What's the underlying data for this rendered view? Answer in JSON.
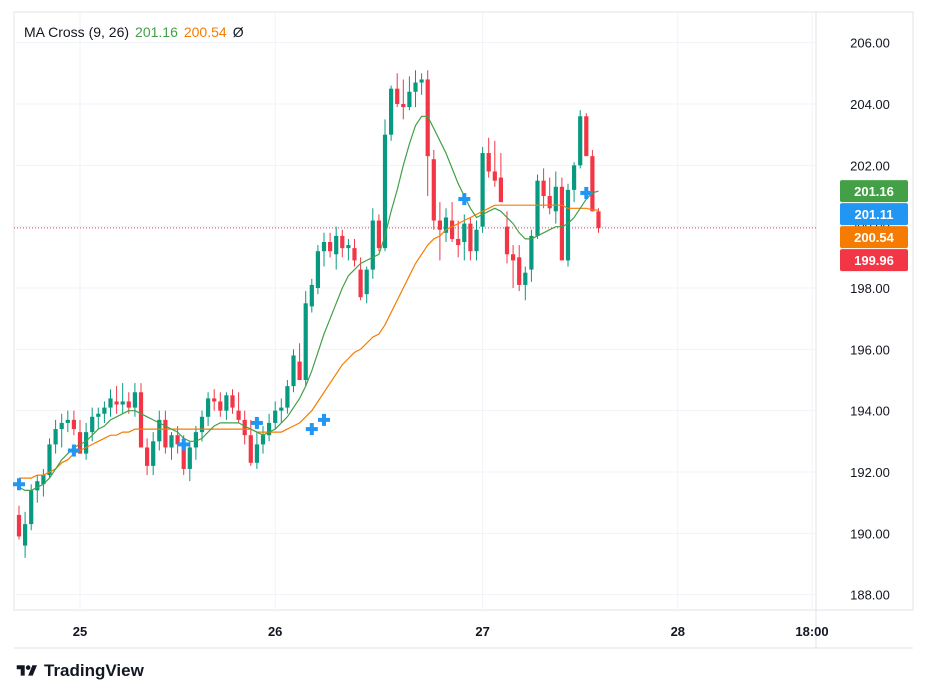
{
  "legend": {
    "indicator": "MA Cross (9, 26)",
    "fast_value": "201.16",
    "slow_value": "200.54",
    "extra": "Ø"
  },
  "brand": {
    "name": "TradingView"
  },
  "colors": {
    "up": "#089981",
    "down": "#f23645",
    "fast_ma": "#43a047",
    "slow_ma": "#f57c00",
    "cross": "#2196f3",
    "grid": "#f0f3fa",
    "axis": "#e0e3eb"
  },
  "chart_data": {
    "type": "candlestick",
    "y_range": [
      187.5,
      207.0
    ],
    "y_ticks": [
      "188.00",
      "190.00",
      "192.00",
      "194.00",
      "196.00",
      "198.00",
      "200.00",
      "202.00",
      "204.00",
      "206.00"
    ],
    "x_ticks": [
      {
        "label": "25",
        "index": 10
      },
      {
        "label": "26",
        "index": 42
      },
      {
        "label": "27",
        "index": 76
      },
      {
        "label": "28",
        "index": 108
      },
      {
        "label": "18:00",
        "index": 130
      }
    ],
    "price_badges": [
      {
        "label": "201.16",
        "value": 201.16,
        "color": "#43a047"
      },
      {
        "label": "201.11",
        "value": 201.11,
        "color": "#2196f3"
      },
      {
        "label": "200.54",
        "value": 200.54,
        "color": "#f57c00"
      },
      {
        "label": "199.96",
        "value": 199.96,
        "color": "#f23645"
      }
    ],
    "last_price": 199.96,
    "candles": [
      [
        190.6,
        190.9,
        189.8,
        189.9
      ],
      [
        189.6,
        190.7,
        189.2,
        190.3
      ],
      [
        190.3,
        191.6,
        190.1,
        191.4
      ],
      [
        191.4,
        191.9,
        191.0,
        191.7
      ],
      [
        191.6,
        192.1,
        191.2,
        191.9
      ],
      [
        191.9,
        193.1,
        191.8,
        192.9
      ],
      [
        192.9,
        193.7,
        192.6,
        193.4
      ],
      [
        193.4,
        193.9,
        192.8,
        193.6
      ],
      [
        193.6,
        194.0,
        193.3,
        193.7
      ],
      [
        193.7,
        194.0,
        193.2,
        193.4
      ],
      [
        193.3,
        193.7,
        192.6,
        192.6
      ],
      [
        192.6,
        193.6,
        192.4,
        193.3
      ],
      [
        193.3,
        194.1,
        193.0,
        193.8
      ],
      [
        193.8,
        194.1,
        193.4,
        193.9
      ],
      [
        193.9,
        194.3,
        193.6,
        194.1
      ],
      [
        194.1,
        194.7,
        193.8,
        194.4
      ],
      [
        194.3,
        194.8,
        193.9,
        194.2
      ],
      [
        194.2,
        194.9,
        193.9,
        194.3
      ],
      [
        194.3,
        194.6,
        193.9,
        194.1
      ],
      [
        194.1,
        194.9,
        193.8,
        194.6
      ],
      [
        194.6,
        194.9,
        192.8,
        192.8
      ],
      [
        192.8,
        193.1,
        191.9,
        192.2
      ],
      [
        192.2,
        193.3,
        191.9,
        193.0
      ],
      [
        193.0,
        194.0,
        192.7,
        193.7
      ],
      [
        193.7,
        194.0,
        192.6,
        192.8
      ],
      [
        192.8,
        193.3,
        192.4,
        193.2
      ],
      [
        193.2,
        193.5,
        192.6,
        192.9
      ],
      [
        192.9,
        193.2,
        191.9,
        192.1
      ],
      [
        192.1,
        193.0,
        191.7,
        192.8
      ],
      [
        192.8,
        193.5,
        192.4,
        193.3
      ],
      [
        193.3,
        194.0,
        193.0,
        193.8
      ],
      [
        193.8,
        194.6,
        193.5,
        194.4
      ],
      [
        194.4,
        194.7,
        194.0,
        194.3
      ],
      [
        194.3,
        194.6,
        193.8,
        194.0
      ],
      [
        194.0,
        194.6,
        193.7,
        194.5
      ],
      [
        194.5,
        194.7,
        193.9,
        194.1
      ],
      [
        194.0,
        194.6,
        193.6,
        193.7
      ],
      [
        193.7,
        194.0,
        192.9,
        193.2
      ],
      [
        193.2,
        193.7,
        192.2,
        192.3
      ],
      [
        192.3,
        193.3,
        192.1,
        192.9
      ],
      [
        192.9,
        193.5,
        192.6,
        193.2
      ],
      [
        193.2,
        193.9,
        193.0,
        193.6
      ],
      [
        193.6,
        194.3,
        193.4,
        194.0
      ],
      [
        194.0,
        194.4,
        193.6,
        194.1
      ],
      [
        194.1,
        195.0,
        193.9,
        194.8
      ],
      [
        194.8,
        196.0,
        194.6,
        195.8
      ],
      [
        195.6,
        196.2,
        195.0,
        195.0
      ],
      [
        195.0,
        197.9,
        194.8,
        197.5
      ],
      [
        197.4,
        198.3,
        197.2,
        198.1
      ],
      [
        198.0,
        199.4,
        197.8,
        199.2
      ],
      [
        199.2,
        199.8,
        198.7,
        199.5
      ],
      [
        199.5,
        199.8,
        199.0,
        199.2
      ],
      [
        199.1,
        200.0,
        198.6,
        199.7
      ],
      [
        199.7,
        199.9,
        199.0,
        199.3
      ],
      [
        199.3,
        199.6,
        198.9,
        199.4
      ],
      [
        199.3,
        199.6,
        198.7,
        198.9
      ],
      [
        198.6,
        199.0,
        197.6,
        197.7
      ],
      [
        197.8,
        198.7,
        197.5,
        198.6
      ],
      [
        198.6,
        200.6,
        198.3,
        200.2
      ],
      [
        200.2,
        200.4,
        199.2,
        199.3
      ],
      [
        199.3,
        203.5,
        199.2,
        203.0
      ],
      [
        203.0,
        204.6,
        202.8,
        204.5
      ],
      [
        204.5,
        205.0,
        203.9,
        204.0
      ],
      [
        204.0,
        204.8,
        203.5,
        203.9
      ],
      [
        203.9,
        204.9,
        203.8,
        204.4
      ],
      [
        204.4,
        205.1,
        203.9,
        204.7
      ],
      [
        204.7,
        205.0,
        204.3,
        204.8
      ],
      [
        204.8,
        205.1,
        201.0,
        202.3
      ],
      [
        202.2,
        202.5,
        199.9,
        200.2
      ],
      [
        200.2,
        200.8,
        198.9,
        199.9
      ],
      [
        199.8,
        200.6,
        199.5,
        200.3
      ],
      [
        200.2,
        200.8,
        199.5,
        199.6
      ],
      [
        199.6,
        200.2,
        199.0,
        199.4
      ],
      [
        199.5,
        200.4,
        198.9,
        200.1
      ],
      [
        200.1,
        200.3,
        198.9,
        199.2
      ],
      [
        199.2,
        200.2,
        198.9,
        199.9
      ],
      [
        200.0,
        202.6,
        199.8,
        202.4
      ],
      [
        202.4,
        202.9,
        201.6,
        201.8
      ],
      [
        201.8,
        202.8,
        201.3,
        201.5
      ],
      [
        201.6,
        202.4,
        200.9,
        200.8
      ],
      [
        200.0,
        200.5,
        198.8,
        199.1
      ],
      [
        199.1,
        199.4,
        198.0,
        198.9
      ],
      [
        199.0,
        199.4,
        197.9,
        198.1
      ],
      [
        198.1,
        198.7,
        197.6,
        198.5
      ],
      [
        198.6,
        199.9,
        198.2,
        199.7
      ],
      [
        199.7,
        201.7,
        199.6,
        201.5
      ],
      [
        201.5,
        201.9,
        200.6,
        201.0
      ],
      [
        201.0,
        201.6,
        200.4,
        200.6
      ],
      [
        200.5,
        201.8,
        200.1,
        201.3
      ],
      [
        201.3,
        201.6,
        198.9,
        198.9
      ],
      [
        198.9,
        201.4,
        198.7,
        201.2
      ],
      [
        201.2,
        202.1,
        200.8,
        202.0
      ],
      [
        202.0,
        203.8,
        201.9,
        203.6
      ],
      [
        203.6,
        203.7,
        202.4,
        202.3
      ],
      [
        202.3,
        202.5,
        200.5,
        200.5
      ],
      [
        200.5,
        200.6,
        199.8,
        199.96
      ]
    ],
    "fast_ma": [
      191.5,
      191.4,
      191.4,
      191.5,
      191.6,
      191.8,
      192.1,
      192.4,
      192.6,
      192.8,
      192.9,
      193.0,
      193.2,
      193.4,
      193.5,
      193.7,
      193.8,
      193.9,
      194.0,
      194.0,
      193.9,
      193.8,
      193.7,
      193.6,
      193.5,
      193.4,
      193.3,
      193.1,
      193.0,
      193.0,
      193.1,
      193.3,
      193.5,
      193.6,
      193.6,
      193.6,
      193.6,
      193.5,
      193.4,
      193.3,
      193.2,
      193.3,
      193.4,
      193.6,
      193.8,
      194.1,
      194.4,
      194.8,
      195.3,
      195.9,
      196.5,
      197.0,
      197.5,
      198.0,
      198.4,
      198.6,
      198.8,
      198.9,
      199.0,
      199.1,
      199.7,
      200.5,
      201.2,
      202.0,
      202.7,
      203.3,
      203.6,
      203.6,
      203.2,
      202.8,
      202.4,
      201.9,
      201.4,
      201.0,
      200.6,
      200.3,
      200.4,
      200.5,
      200.6,
      200.5,
      200.3,
      200.1,
      199.8,
      199.6,
      199.6,
      199.7,
      199.8,
      199.9,
      200.0,
      200.0,
      200.1,
      200.3,
      200.6,
      200.9,
      201.1,
      201.16
    ],
    "slow_ma": [
      191.8,
      191.8,
      191.8,
      191.9,
      191.9,
      192.0,
      192.1,
      192.3,
      192.4,
      192.6,
      192.7,
      192.8,
      192.9,
      193.0,
      193.1,
      193.2,
      193.2,
      193.3,
      193.3,
      193.4,
      193.4,
      193.4,
      193.4,
      193.4,
      193.4,
      193.4,
      193.4,
      193.4,
      193.4,
      193.4,
      193.4,
      193.4,
      193.4,
      193.4,
      193.4,
      193.4,
      193.4,
      193.4,
      193.4,
      193.3,
      193.3,
      193.3,
      193.3,
      193.3,
      193.4,
      193.5,
      193.6,
      193.8,
      194.0,
      194.3,
      194.6,
      194.9,
      195.2,
      195.5,
      195.7,
      195.9,
      196.0,
      196.2,
      196.4,
      196.5,
      196.8,
      197.2,
      197.6,
      198.0,
      198.4,
      198.8,
      199.1,
      199.4,
      199.6,
      199.7,
      199.9,
      200.0,
      200.1,
      200.2,
      200.3,
      200.4,
      200.5,
      200.6,
      200.7,
      200.7,
      200.7,
      200.7,
      200.7,
      200.7,
      200.7,
      200.7,
      200.7,
      200.7,
      200.7,
      200.7,
      200.6,
      200.6,
      200.6,
      200.6,
      200.55,
      200.54
    ],
    "crosses": [
      {
        "index": 0,
        "value": 191.6
      },
      {
        "index": 9,
        "value": 192.7
      },
      {
        "index": 27,
        "value": 192.9
      },
      {
        "index": 39,
        "value": 193.6
      },
      {
        "index": 48,
        "value": 193.4
      },
      {
        "index": 50,
        "value": 193.7
      },
      {
        "index": 73,
        "value": 200.9
      },
      {
        "index": 93,
        "value": 201.1
      }
    ]
  }
}
